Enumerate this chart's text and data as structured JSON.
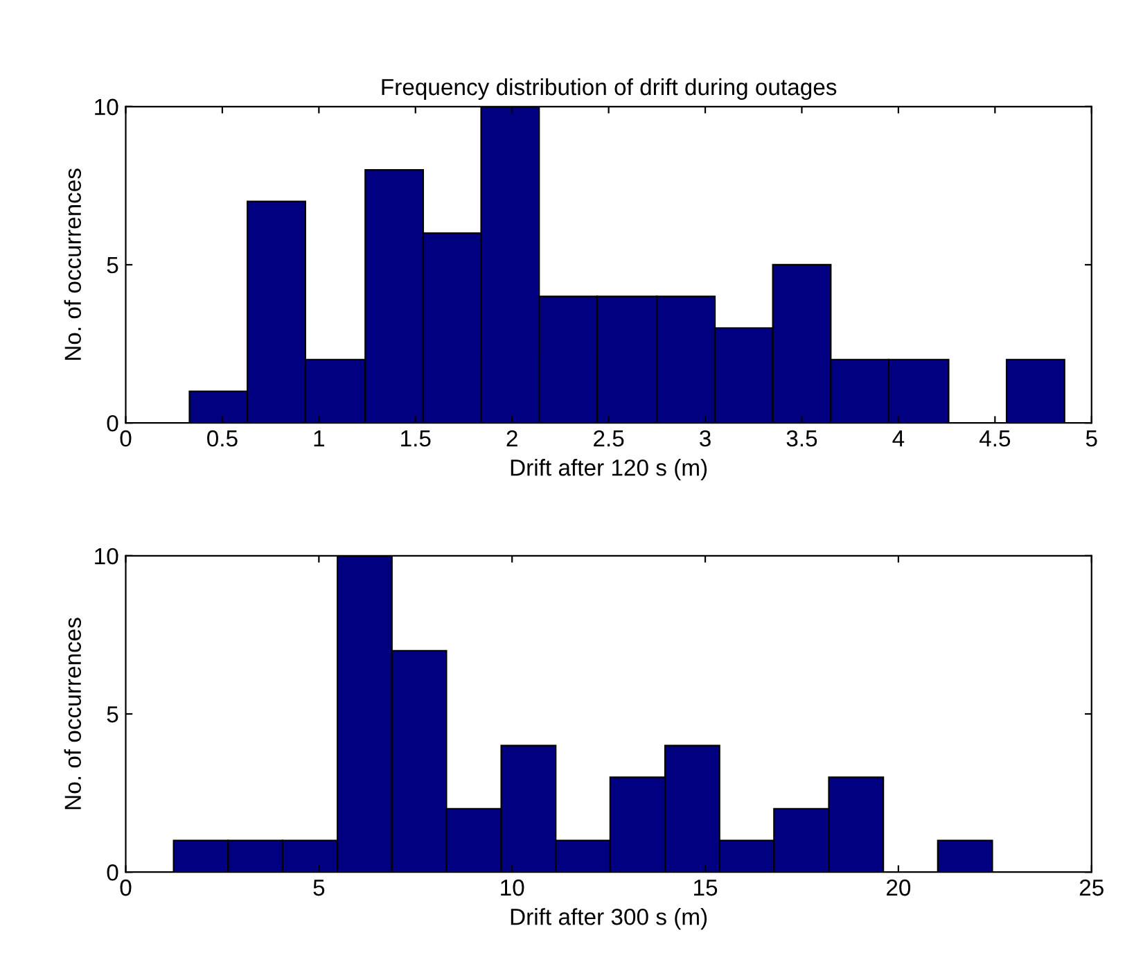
{
  "chart_data": [
    {
      "type": "histogram",
      "title": "Frequency distribution of drift during outages",
      "xlabel": "Drift after 120 s (m)",
      "ylabel": "No. of occurrences",
      "color": "#000080",
      "bins": [
        0.33,
        0.63,
        0.93,
        1.24,
        1.54,
        1.84,
        2.14,
        2.44,
        2.75,
        3.05,
        3.35,
        3.65,
        3.95,
        4.26,
        4.56,
        4.86
      ],
      "values": [
        1,
        7,
        2,
        8,
        6,
        10,
        4,
        4,
        4,
        3,
        5,
        2,
        2,
        0,
        2
      ],
      "xlim": [
        0,
        5
      ],
      "xticks": [
        0,
        0.5,
        1,
        1.5,
        2,
        2.5,
        3,
        3.5,
        4,
        4.5,
        5
      ],
      "ylim": [
        0,
        10
      ],
      "yticks": [
        0,
        5,
        10
      ],
      "grid": false
    },
    {
      "type": "histogram",
      "xlabel": "Drift after 300 s (m)",
      "ylabel": "No. of occurrences",
      "color": "#000080",
      "bins": [
        1.24,
        2.65,
        4.06,
        5.48,
        6.89,
        8.3,
        9.72,
        11.13,
        12.54,
        13.96,
        15.37,
        16.78,
        18.2,
        19.61,
        21.02,
        22.43
      ],
      "values": [
        1,
        1,
        1,
        10,
        7,
        2,
        4,
        1,
        3,
        4,
        1,
        2,
        3,
        0,
        1
      ],
      "xlim": [
        0,
        25
      ],
      "xticks": [
        0,
        5,
        10,
        15,
        20,
        25
      ],
      "ylim": [
        0,
        10
      ],
      "yticks": [
        0,
        5,
        10
      ],
      "grid": false
    }
  ]
}
